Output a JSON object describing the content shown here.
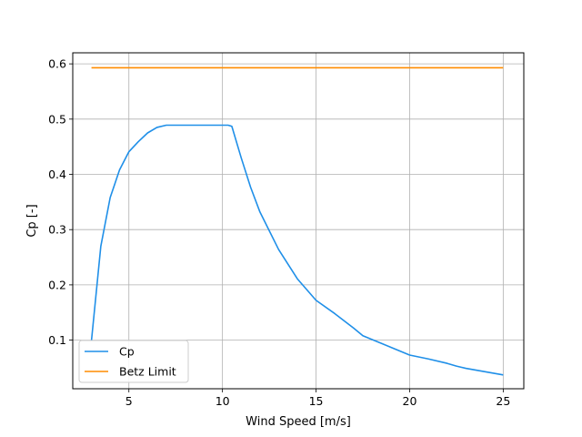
{
  "chart_data": {
    "type": "line",
    "title": "",
    "xlabel": "Wind Speed [m/s]",
    "ylabel": "Cp [-]",
    "xlim": [
      2,
      26.1
    ],
    "ylim": [
      0.012,
      0.62
    ],
    "xticks": [
      5,
      10,
      15,
      20,
      25
    ],
    "yticks": [
      0.1,
      0.2,
      0.3,
      0.4,
      0.5,
      0.6
    ],
    "grid": true,
    "legend_position": "lower-left",
    "series": [
      {
        "name": "Cp",
        "color": "#1f8fe8",
        "x": [
          3.0,
          3.5,
          4.0,
          4.5,
          5.0,
          5.5,
          6.0,
          6.5,
          7.0,
          8.0,
          9.0,
          10.0,
          10.3,
          10.5,
          11.0,
          11.5,
          12.0,
          13.0,
          14.0,
          15.0,
          16.0,
          17.0,
          17.5,
          18.0,
          19.0,
          20.0,
          21.0,
          22.0,
          22.5,
          23.0,
          24.0,
          25.0
        ],
        "y": [
          0.099,
          0.27,
          0.358,
          0.408,
          0.441,
          0.459,
          0.475,
          0.485,
          0.489,
          0.489,
          0.489,
          0.489,
          0.489,
          0.487,
          0.43,
          0.377,
          0.332,
          0.264,
          0.211,
          0.172,
          0.148,
          0.122,
          0.108,
          0.101,
          0.087,
          0.073,
          0.066,
          0.058,
          0.053,
          0.049,
          0.043,
          0.037
        ]
      },
      {
        "name": "Betz Limit",
        "color": "#ff8c00",
        "x": [
          3.0,
          25.0
        ],
        "y": [
          0.593,
          0.593
        ]
      }
    ]
  }
}
